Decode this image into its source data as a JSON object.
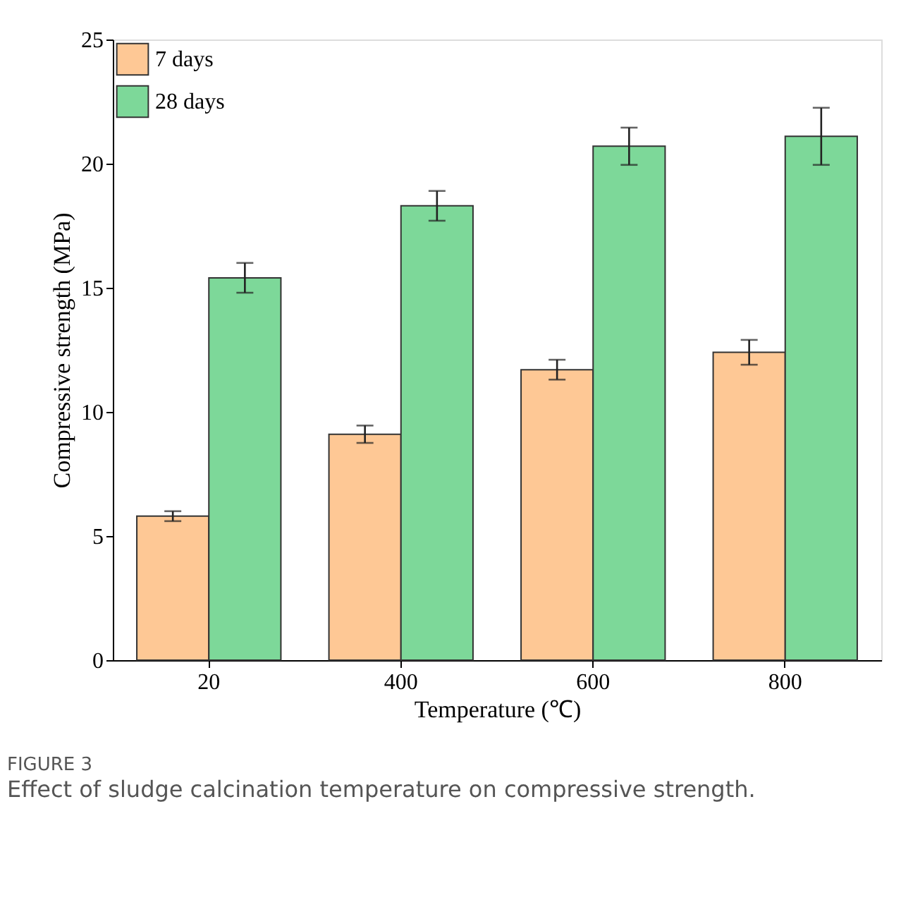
{
  "chart_data": {
    "type": "bar",
    "xlabel": "Temperature (℃)",
    "ylabel": "Compressive strength (MPa)",
    "categories": [
      "20",
      "400",
      "600",
      "800"
    ],
    "series": [
      {
        "name": "7 days",
        "color": "#fec895",
        "values": [
          5.8,
          9.1,
          11.7,
          12.4
        ],
        "errors": [
          0.2,
          0.35,
          0.4,
          0.5
        ]
      },
      {
        "name": "28 days",
        "color": "#7dd899",
        "values": [
          15.4,
          18.3,
          20.7,
          21.1
        ],
        "errors": [
          0.6,
          0.6,
          0.75,
          1.15
        ]
      }
    ],
    "ylim": [
      0,
      25
    ],
    "yticks": [
      0,
      5,
      10,
      15,
      20,
      25
    ],
    "grid": false,
    "legend": "top left",
    "annotations": [
      "FIGURE 3",
      "Effect of sludge calcination temperature on compressive strength."
    ]
  }
}
